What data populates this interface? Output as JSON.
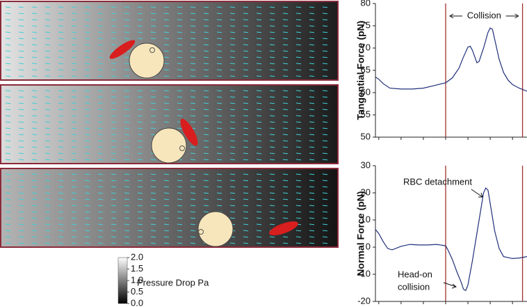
{
  "chart_data": [
    {
      "type": "line",
      "ylabel": "Tangential Force (pN)",
      "color": "#1f2f7a",
      "x": [
        -1.5,
        0,
        2,
        5,
        10,
        15,
        20,
        25,
        30,
        33,
        36,
        38,
        40,
        41,
        42,
        44,
        45,
        47,
        49,
        50,
        51,
        52,
        54,
        56,
        58,
        60,
        63,
        66.5
      ],
      "values": [
        63.5,
        63,
        62,
        61,
        60.8,
        60.8,
        61,
        61.6,
        62.2,
        63.3,
        65.5,
        68,
        70.2,
        70.4,
        69.5,
        66.7,
        67,
        70,
        73.5,
        74.5,
        74.2,
        72,
        67.5,
        64.5,
        62.8,
        61.8,
        61,
        60.3
      ],
      "xlim": [
        -1.5,
        66.5
      ],
      "xticks": [
        0,
        10,
        20,
        30,
        40,
        50,
        60
      ],
      "ylim": [
        50,
        80
      ],
      "yticks": [
        50,
        55,
        60,
        65,
        70,
        75,
        80
      ],
      "vlines": [
        {
          "x": 30,
          "color": "#a0302a"
        },
        {
          "x": 64.5,
          "color": "#a0302a"
        }
      ],
      "annotation": "Collision"
    },
    {
      "type": "line",
      "ylabel": "Normal Force (pN)",
      "color": "#1f2f7a",
      "x": [
        -1.5,
        0,
        2,
        4,
        6,
        10,
        14,
        18,
        22,
        26,
        30,
        31,
        33,
        35,
        37,
        38,
        39,
        40,
        42,
        44,
        46,
        47,
        48,
        49,
        50,
        52,
        54,
        56,
        60,
        63,
        66.5
      ],
      "values": [
        6.5,
        5,
        2,
        -0.5,
        -1,
        0.3,
        1,
        0.8,
        0.8,
        1,
        0.5,
        -1,
        -4.5,
        -9,
        -13,
        -15.5,
        -16,
        -14,
        -5,
        5,
        15,
        20,
        21.8,
        21,
        16,
        6,
        -0.5,
        -3.5,
        -4.2,
        -4,
        -3.5
      ],
      "xlim": [
        -1.5,
        66.5
      ],
      "xticks": [
        0,
        10,
        20,
        30,
        40,
        50,
        60
      ],
      "ylim": [
        -20,
        30
      ],
      "yticks": [
        -20,
        -10,
        0,
        10,
        20,
        30
      ],
      "vlines": [
        {
          "x": 30,
          "color": "#a0302a"
        },
        {
          "x": 64.5,
          "color": "#a0302a"
        }
      ],
      "annotations": [
        {
          "text": "RBC detachment"
        },
        {
          "lines": [
            "Head-on",
            "collision"
          ]
        }
      ]
    },
    {
      "type": "colorbar",
      "label": "Pressure Drop Pa",
      "ylim": [
        0,
        2
      ],
      "yticks": [
        {
          "value": 0,
          "label": "0.0"
        },
        {
          "value": 0.5,
          "label": "0.5"
        },
        {
          "value": 1,
          "label": "1.0"
        },
        {
          "value": 1.5,
          "label": "1.5"
        },
        {
          "value": 2,
          "label": "2.0"
        }
      ]
    }
  ]
}
